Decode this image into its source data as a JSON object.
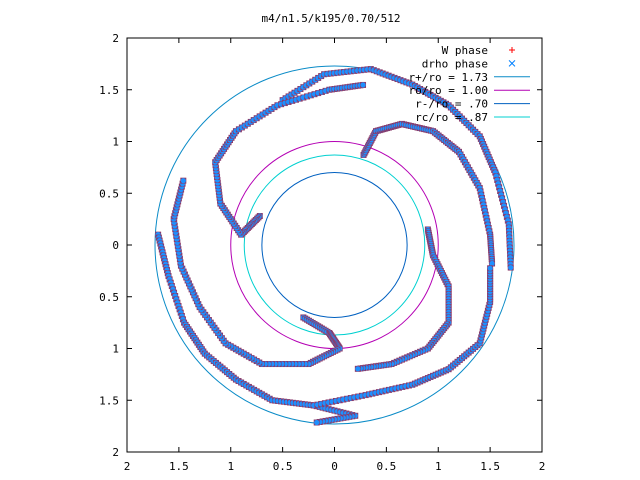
{
  "chart_data": {
    "type": "scatter",
    "title": "m4/n1.5/k195/0.70/512",
    "xlabel": "",
    "ylabel": "",
    "xlim": [
      -2,
      2
    ],
    "ylim": [
      -2,
      2
    ],
    "xtick_values": [
      -2,
      -1.5,
      -1,
      -0.5,
      0,
      0.5,
      1,
      1.5,
      2
    ],
    "xtick_labels": [
      "2",
      "1.5",
      "1",
      "0.5",
      "0",
      "0.5",
      "1",
      "1.5",
      "2"
    ],
    "ytick_values": [
      2,
      1.5,
      1,
      0.5,
      0,
      -0.5,
      -1,
      -1.5,
      -2
    ],
    "ytick_labels": [
      "2",
      "1.5",
      "1",
      "0.5",
      "0",
      "0.5",
      "1",
      "1.5",
      "2"
    ],
    "grid": false,
    "legend_position": "top-right",
    "series": [
      {
        "name": "W phase",
        "kind": "points",
        "marker": "plus",
        "color": "#ff0000"
      },
      {
        "name": "drho phase",
        "kind": "points",
        "marker": "cross",
        "color": "#0080ff"
      },
      {
        "name": "r+/ro = 1.73",
        "kind": "circle",
        "r": 1.73,
        "color": "#0a8bc7"
      },
      {
        "name": "ro/ro = 1.00",
        "kind": "circle",
        "r": 1.0,
        "color": "#b400b4"
      },
      {
        "name": "r-/ro = .70",
        "kind": "circle",
        "r": 0.7,
        "color": "#0060c0"
      },
      {
        "name": "rc/ro = .87",
        "kind": "circle",
        "r": 0.87,
        "color": "#00d0d0"
      }
    ],
    "spiral_arms": [
      {
        "name": "arm-ne-inner",
        "points": [
          [
            0.28,
            0.87
          ],
          [
            0.4,
            1.1
          ],
          [
            0.65,
            1.17
          ],
          [
            0.95,
            1.1
          ],
          [
            1.2,
            0.9
          ],
          [
            1.4,
            0.55
          ],
          [
            1.5,
            0.1
          ],
          [
            1.52,
            -0.2
          ]
        ]
      },
      {
        "name": "arm-ne-outer",
        "points": [
          [
            -0.5,
            1.4
          ],
          [
            -0.1,
            1.65
          ],
          [
            0.35,
            1.7
          ],
          [
            0.75,
            1.55
          ],
          [
            1.1,
            1.35
          ],
          [
            1.4,
            1.05
          ],
          [
            1.55,
            0.7
          ],
          [
            1.68,
            0.2
          ],
          [
            1.7,
            -0.25
          ]
        ]
      },
      {
        "name": "arm-w-inner",
        "points": [
          [
            -0.72,
            0.28
          ],
          [
            -0.9,
            0.1
          ],
          [
            -1.1,
            0.4
          ],
          [
            -1.15,
            0.8
          ],
          [
            -0.95,
            1.1
          ],
          [
            -0.55,
            1.35
          ],
          [
            -0.05,
            1.5
          ],
          [
            0.3,
            1.55
          ]
        ]
      },
      {
        "name": "arm-w-outer",
        "points": [
          [
            -1.7,
            0.1
          ],
          [
            -1.6,
            -0.3
          ],
          [
            -1.45,
            -0.75
          ],
          [
            -1.25,
            -1.05
          ],
          [
            -0.95,
            -1.3
          ],
          [
            -0.6,
            -1.5
          ],
          [
            -0.2,
            -1.55
          ],
          [
            0.2,
            -1.65
          ],
          [
            -0.2,
            -1.72
          ]
        ]
      },
      {
        "name": "arm-s-inner",
        "points": [
          [
            -0.3,
            -0.7
          ],
          [
            -0.05,
            -0.85
          ],
          [
            0.05,
            -1.0
          ],
          [
            -0.25,
            -1.15
          ],
          [
            -0.7,
            -1.15
          ],
          [
            -1.05,
            -0.95
          ],
          [
            -1.3,
            -0.6
          ],
          [
            -1.48,
            -0.2
          ],
          [
            -1.55,
            0.25
          ],
          [
            -1.45,
            0.65
          ]
        ]
      },
      {
        "name": "arm-se-outer",
        "points": [
          [
            -0.2,
            -1.55
          ],
          [
            0.3,
            -1.45
          ],
          [
            0.75,
            -1.35
          ],
          [
            1.1,
            -1.2
          ],
          [
            1.4,
            -0.95
          ],
          [
            1.5,
            -0.55
          ],
          [
            1.5,
            -0.2
          ]
        ]
      },
      {
        "name": "arm-e-inner",
        "points": [
          [
            0.9,
            0.15
          ],
          [
            0.95,
            -0.1
          ],
          [
            1.1,
            -0.4
          ],
          [
            1.1,
            -0.75
          ],
          [
            0.9,
            -1.0
          ],
          [
            0.55,
            -1.15
          ],
          [
            0.2,
            -1.2
          ]
        ]
      }
    ]
  }
}
